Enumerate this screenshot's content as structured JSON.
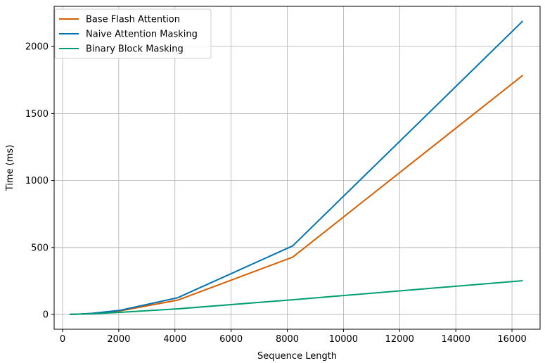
{
  "chart_data": {
    "type": "line",
    "title": "",
    "xlabel": "Sequence Length",
    "ylabel": "Time (ms)",
    "xlim": [
      -300,
      17000
    ],
    "ylim": [
      -110,
      2300
    ],
    "xticks": [
      0,
      2000,
      4000,
      6000,
      8000,
      10000,
      12000,
      14000,
      16000
    ],
    "yticks": [
      0,
      500,
      1000,
      1500,
      2000
    ],
    "grid": true,
    "legend_position": "top-left",
    "x": [
      256,
      512,
      1024,
      2048,
      4096,
      8192,
      16384
    ],
    "series": [
      {
        "name": "Base Flash Attention",
        "color": "#d55e00",
        "values": [
          1,
          2,
          7,
          27,
          107,
          428,
          1785
        ]
      },
      {
        "name": "Naive Attention Masking",
        "color": "#0072b2",
        "values": [
          1,
          2,
          8,
          31,
          125,
          512,
          2190
        ]
      },
      {
        "name": "Binary Block Masking",
        "color": "#009e73",
        "values": [
          1,
          2,
          5,
          16,
          42,
          110,
          252
        ]
      }
    ]
  }
}
